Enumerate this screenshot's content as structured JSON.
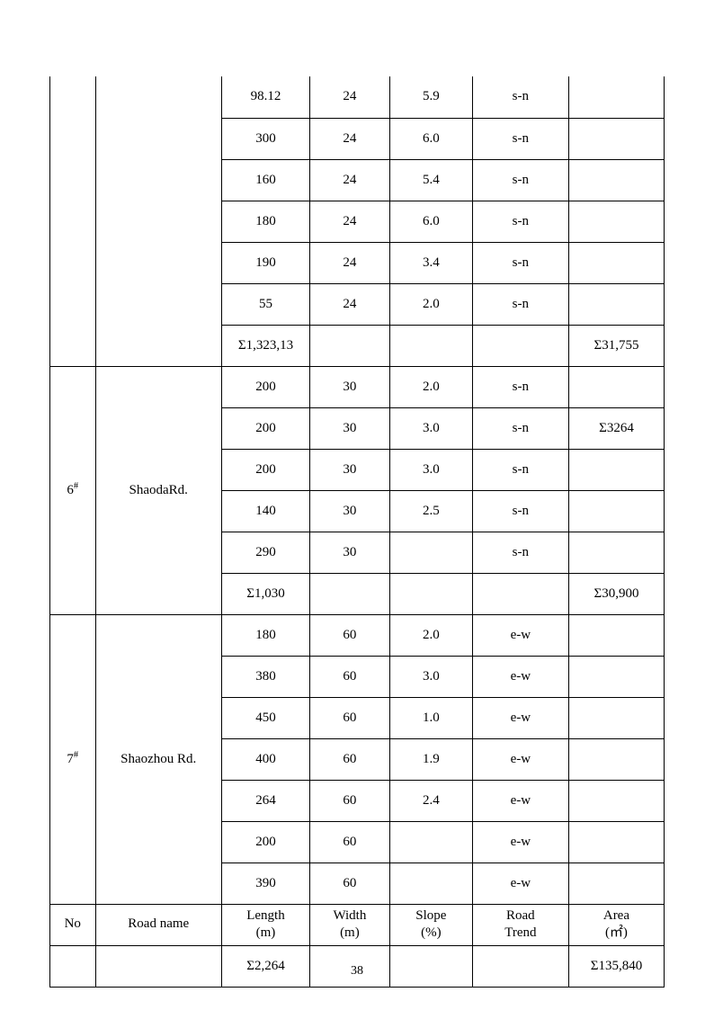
{
  "page_number": "38",
  "sigma": "Σ",
  "hash": "#",
  "headers": {
    "no": "No",
    "road_name": "Road name",
    "length": "Length",
    "length_unit": "(m)",
    "width": "Width",
    "width_unit": "(m)",
    "slope": "Slope",
    "slope_unit": "(%)",
    "trend_l1": "Road",
    "trend_l2": "Trend",
    "area": "Area",
    "area_unit": "(㎡)"
  },
  "sections": {
    "top": {
      "rows": [
        {
          "length": "98.12",
          "width": "24",
          "slope": "5.9",
          "trend": "s-n",
          "area": ""
        },
        {
          "length": "300",
          "width": "24",
          "slope": "6.0",
          "trend": "s-n",
          "area": ""
        },
        {
          "length": "160",
          "width": "24",
          "slope": "5.4",
          "trend": "s-n",
          "area": ""
        },
        {
          "length": "180",
          "width": "24",
          "slope": "6.0",
          "trend": "s-n",
          "area": ""
        },
        {
          "length": "190",
          "width": "24",
          "slope": "3.4",
          "trend": "s-n",
          "area": ""
        },
        {
          "length": "55",
          "width": "24",
          "slope": "2.0",
          "trend": "s-n",
          "area": ""
        }
      ],
      "sum_length": "1,323,13",
      "sum_area": "31,755"
    },
    "s6": {
      "no_num": "6",
      "name": "ShaodaRd.",
      "rows": [
        {
          "length": "200",
          "width": "30",
          "slope": "2.0",
          "trend": "s-n",
          "area": ""
        },
        {
          "length": "200",
          "width": "30",
          "slope": "3.0",
          "trend": "s-n",
          "area_sigma": "3264"
        },
        {
          "length": "200",
          "width": "30",
          "slope": "3.0",
          "trend": "s-n",
          "area": ""
        },
        {
          "length": "140",
          "width": "30",
          "slope": "2.5",
          "trend": "s-n",
          "area": ""
        },
        {
          "length": "290",
          "width": "30",
          "slope": "",
          "trend": "s-n",
          "area": ""
        }
      ],
      "sum_length": "1,030",
      "sum_area": "30,900"
    },
    "s7": {
      "no_num": "7",
      "name": "Shaozhou Rd.",
      "rows": [
        {
          "length": "180",
          "width": "60",
          "slope": "2.0",
          "trend": "e-w",
          "area": ""
        },
        {
          "length": "380",
          "width": "60",
          "slope": "3.0",
          "trend": "e-w",
          "area": ""
        },
        {
          "length": "450",
          "width": "60",
          "slope": "1.0",
          "trend": "e-w",
          "area": ""
        },
        {
          "length": "400",
          "width": "60",
          "slope": "1.9",
          "trend": "e-w",
          "area": ""
        },
        {
          "length": "264",
          "width": "60",
          "slope": "2.4",
          "trend": "e-w",
          "area": ""
        },
        {
          "length": "200",
          "width": "60",
          "slope": "",
          "trend": "e-w",
          "area": ""
        },
        {
          "length": "390",
          "width": "60",
          "slope": "",
          "trend": "e-w",
          "area": ""
        }
      ]
    },
    "bottom": {
      "sum_length": "2,264",
      "sum_area": "135,840"
    }
  }
}
